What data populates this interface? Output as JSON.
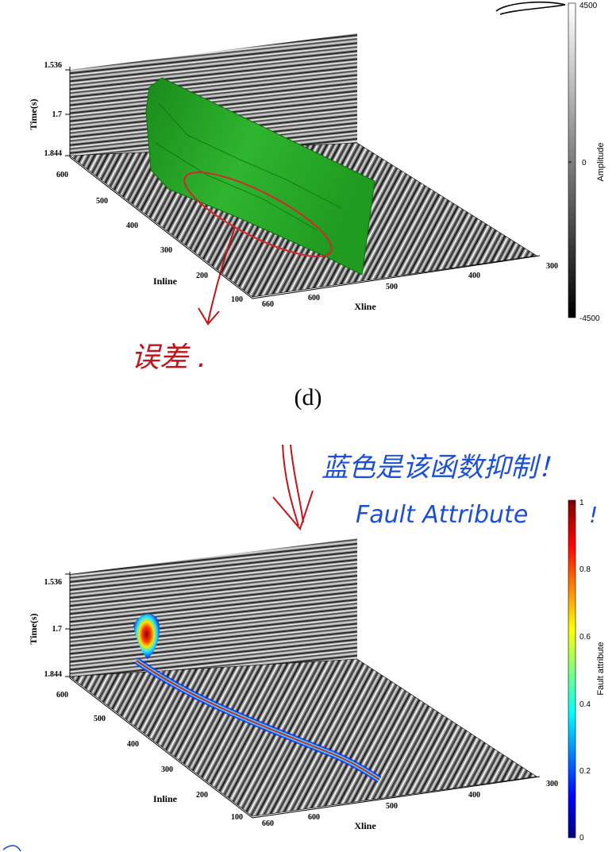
{
  "figure": {
    "caption": "(d)",
    "panels": [
      {
        "id": "amplitude",
        "axes": {
          "time_label": "Time(s)",
          "time_ticks": [
            "1.536",
            "1.7",
            "1.844"
          ],
          "inline_label": "Inline",
          "inline_ticks": [
            "600",
            "500",
            "400",
            "300",
            "200",
            "100"
          ],
          "xline_label": "Xline",
          "xline_ticks": [
            "660",
            "600",
            "500",
            "400",
            "300"
          ]
        },
        "colorbar": {
          "label": "Amplitude",
          "ticks": [
            "4500",
            "0",
            "-4500"
          ],
          "colors": [
            "#ffffff",
            "#000000"
          ]
        },
        "overlay": "green fault surface",
        "annotation_text": "误差 ."
      },
      {
        "id": "fault-attribute",
        "axes": {
          "time_label": "Time(s)",
          "time_ticks": [
            "1.536",
            "1.7",
            "1.844"
          ],
          "inline_label": "Inline",
          "inline_ticks": [
            "600",
            "500",
            "400",
            "300",
            "200",
            "100"
          ],
          "xline_label": "Xline",
          "xline_ticks": [
            "660",
            "600",
            "500",
            "400",
            "300"
          ]
        },
        "colorbar": {
          "label": "Fault attribute",
          "ticks": [
            "1",
            "0.8",
            "0.6",
            "0.4",
            "0.2",
            "0"
          ],
          "colors": [
            "#00007f",
            "#0000ff",
            "#00ffff",
            "#ffff00",
            "#ff0000",
            "#7f0000"
          ]
        },
        "annotation_line1": "蓝色是该函数抑制！",
        "annotation_line2": "Fault Attribute",
        "annotation_mark": "!"
      }
    ]
  }
}
